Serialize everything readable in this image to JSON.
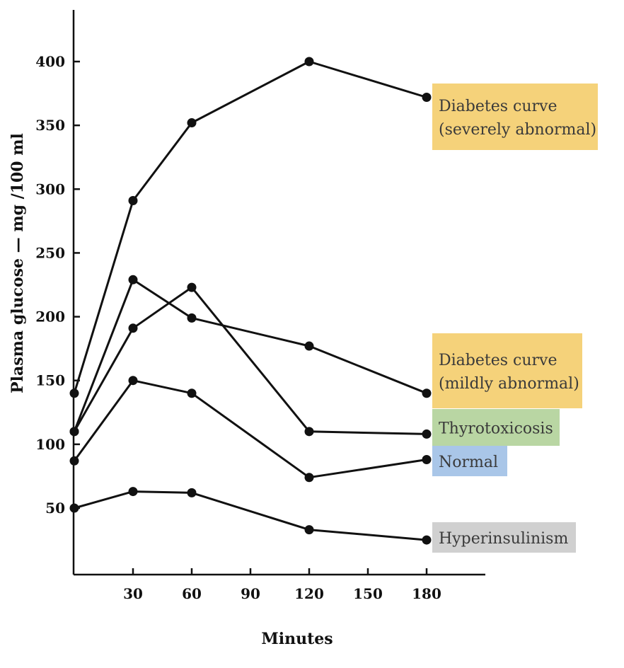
{
  "chart_data": {
    "type": "line",
    "xlabel": "Minutes",
    "ylabel": "Plasma glucose — mg /100 ml",
    "x_ticks": [
      "30",
      "60",
      "90",
      "120",
      "150",
      "180"
    ],
    "x_tick_values": [
      30,
      60,
      90,
      120,
      150,
      180
    ],
    "y_ticks": [
      "50",
      "100",
      "150",
      "200",
      "250",
      "300",
      "350",
      "400"
    ],
    "y_tick_values": [
      50,
      100,
      150,
      200,
      250,
      300,
      350,
      400
    ],
    "xlim": [
      0,
      210
    ],
    "ylim": [
      0,
      440
    ],
    "grid": false,
    "series": [
      {
        "id": "severe",
        "label_lines": [
          "Diabetes curve",
          "(severely abnormal)"
        ],
        "highlight": "#f5d27a",
        "x": [
          0,
          30,
          60,
          120,
          180
        ],
        "values": [
          140,
          291,
          352,
          400,
          372
        ]
      },
      {
        "id": "mild",
        "label_lines": [
          "Diabetes curve",
          "(mildly abnormal)"
        ],
        "highlight": "#f5d27a",
        "x": [
          0,
          30,
          60,
          120,
          180
        ],
        "values": [
          110,
          229,
          199,
          177,
          140
        ]
      },
      {
        "id": "thyro",
        "label_lines": [
          "Thyrotoxicosis"
        ],
        "highlight": "#b9d6a3",
        "x": [
          0,
          30,
          60,
          120,
          180
        ],
        "values": [
          110,
          191,
          223,
          110,
          108
        ]
      },
      {
        "id": "normal",
        "label_lines": [
          "Normal"
        ],
        "highlight": "#a9c6e8",
        "x": [
          0,
          30,
          60,
          120,
          180
        ],
        "values": [
          87,
          150,
          140,
          74,
          88
        ]
      },
      {
        "id": "hyper",
        "label_lines": [
          "Hyperinsulinism"
        ],
        "highlight": "#d0d0d0",
        "x": [
          0,
          30,
          60,
          120,
          180
        ],
        "values": [
          50,
          63,
          62,
          33,
          25
        ]
      }
    ]
  }
}
